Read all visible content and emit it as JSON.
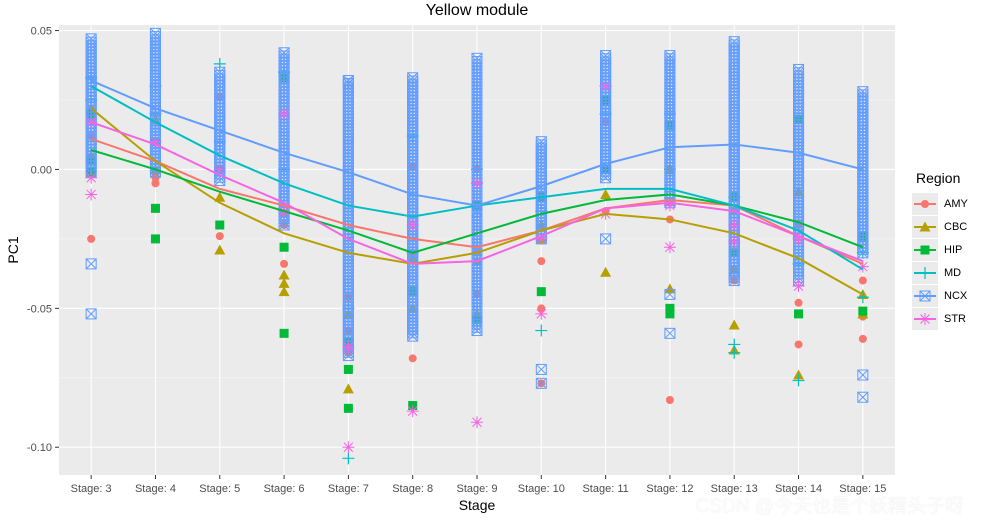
{
  "chart_data": {
    "type": "scatter",
    "title": "Yellow module",
    "xlabel": "Stage",
    "ylabel": "PC1",
    "categories": [
      "Stage: 3",
      "Stage: 4",
      "Stage: 5",
      "Stage: 6",
      "Stage: 7",
      "Stage: 8",
      "Stage: 9",
      "Stage: 10",
      "Stage: 11",
      "Stage: 12",
      "Stage: 13",
      "Stage: 14",
      "Stage: 15"
    ],
    "ylim": [
      -0.11,
      0.052
    ],
    "yticks": [
      0.05,
      0.0,
      -0.05,
      -0.1
    ],
    "ytick_labels": [
      "0.05",
      "0.00",
      "-0.05",
      "-0.10"
    ],
    "legend_title": "Region",
    "legend_position": "right",
    "grid": true,
    "series": [
      {
        "name": "AMY",
        "color": "#F8766D",
        "shape": "circle",
        "trend": [
          0.011,
          0.003,
          -0.007,
          -0.013,
          -0.02,
          -0.025,
          -0.028,
          -0.022,
          -0.014,
          -0.011,
          -0.013,
          -0.024,
          -0.034
        ],
        "points": [
          [
            0,
            0.012
          ],
          [
            0,
            0.018
          ],
          [
            0,
            -0.025
          ],
          [
            1,
            0.01
          ],
          [
            1,
            -0.003
          ],
          [
            1,
            -0.005
          ],
          [
            2,
            0.0
          ],
          [
            2,
            -0.024
          ],
          [
            2,
            0.026
          ],
          [
            3,
            -0.016
          ],
          [
            3,
            -0.034
          ],
          [
            3,
            -0.02
          ],
          [
            4,
            -0.046
          ],
          [
            4,
            -0.066
          ],
          [
            4,
            -0.058
          ],
          [
            5,
            -0.068
          ],
          [
            5,
            0.001
          ],
          [
            5,
            -0.03
          ],
          [
            6,
            0.0
          ],
          [
            6,
            -0.03
          ],
          [
            6,
            -0.045
          ],
          [
            7,
            -0.077
          ],
          [
            7,
            -0.033
          ],
          [
            7,
            -0.05
          ],
          [
            8,
            0.017
          ],
          [
            8,
            0.0
          ],
          [
            8,
            -0.015
          ],
          [
            9,
            -0.083
          ],
          [
            9,
            0.0
          ],
          [
            9,
            -0.018
          ],
          [
            10,
            -0.036
          ],
          [
            10,
            -0.04
          ],
          [
            10,
            -0.015
          ],
          [
            11,
            -0.063
          ],
          [
            11,
            -0.048
          ],
          [
            11,
            -0.02
          ],
          [
            12,
            -0.061
          ],
          [
            12,
            -0.053
          ],
          [
            12,
            -0.04
          ]
        ]
      },
      {
        "name": "CBC",
        "color": "#B79F00",
        "shape": "triangle",
        "trend": [
          0.022,
          0.003,
          -0.012,
          -0.023,
          -0.03,
          -0.034,
          -0.03,
          -0.022,
          -0.016,
          -0.018,
          -0.023,
          -0.032,
          -0.045
        ],
        "points": [
          [
            0,
            0.022
          ],
          [
            0,
            0.005
          ],
          [
            1,
            0.018
          ],
          [
            1,
            0.0
          ],
          [
            2,
            -0.029
          ],
          [
            2,
            -0.01
          ],
          [
            3,
            -0.038
          ],
          [
            3,
            -0.041
          ],
          [
            3,
            -0.044
          ],
          [
            4,
            -0.079
          ],
          [
            4,
            -0.052
          ],
          [
            4,
            -0.064
          ],
          [
            5,
            -0.032
          ],
          [
            5,
            -0.05
          ],
          [
            6,
            -0.033
          ],
          [
            6,
            -0.052
          ],
          [
            7,
            -0.025
          ],
          [
            7,
            -0.02
          ],
          [
            8,
            -0.037
          ],
          [
            8,
            -0.009
          ],
          [
            9,
            -0.043
          ],
          [
            9,
            0.0
          ],
          [
            10,
            -0.056
          ],
          [
            10,
            -0.065
          ],
          [
            10,
            -0.036
          ],
          [
            11,
            -0.074
          ],
          [
            11,
            -0.008
          ],
          [
            12,
            -0.052
          ],
          [
            12,
            -0.045
          ]
        ]
      },
      {
        "name": "HIP",
        "color": "#00BA38",
        "shape": "square",
        "trend": [
          0.007,
          0.0,
          -0.008,
          -0.015,
          -0.022,
          -0.03,
          -0.023,
          -0.016,
          -0.011,
          -0.009,
          -0.013,
          -0.019,
          -0.028
        ],
        "points": [
          [
            0,
            0.003
          ],
          [
            0,
            -0.001
          ],
          [
            0,
            0.02
          ],
          [
            1,
            -0.014
          ],
          [
            1,
            -0.025
          ],
          [
            1,
            0.01
          ],
          [
            2,
            -0.02
          ],
          [
            2,
            0.0
          ],
          [
            3,
            -0.059
          ],
          [
            3,
            -0.028
          ],
          [
            3,
            0.033
          ],
          [
            4,
            -0.086
          ],
          [
            4,
            -0.072
          ],
          [
            4,
            -0.062
          ],
          [
            5,
            -0.085
          ],
          [
            5,
            -0.044
          ],
          [
            6,
            -0.054
          ],
          [
            6,
            -0.013
          ],
          [
            7,
            -0.044
          ],
          [
            7,
            -0.01
          ],
          [
            8,
            0.025
          ],
          [
            8,
            0.0
          ],
          [
            9,
            0.016
          ],
          [
            9,
            -0.05
          ],
          [
            9,
            -0.052
          ],
          [
            10,
            -0.03
          ],
          [
            10,
            -0.01
          ],
          [
            11,
            0.018
          ],
          [
            11,
            -0.052
          ],
          [
            12,
            -0.051
          ],
          [
            12,
            -0.024
          ]
        ]
      },
      {
        "name": "MD",
        "color": "#00BFC4",
        "shape": "plus",
        "trend": [
          0.03,
          0.017,
          0.005,
          -0.005,
          -0.013,
          -0.017,
          -0.013,
          -0.01,
          -0.007,
          -0.007,
          -0.013,
          -0.022,
          -0.036
        ],
        "points": [
          [
            0,
            0.033
          ],
          [
            0,
            0.025
          ],
          [
            1,
            0.02
          ],
          [
            1,
            0.03
          ],
          [
            2,
            0.038
          ],
          [
            2,
            0.01
          ],
          [
            3,
            0.035
          ],
          [
            3,
            0.0
          ],
          [
            4,
            -0.104
          ],
          [
            4,
            -0.05
          ],
          [
            5,
            0.012
          ],
          [
            5,
            -0.03
          ],
          [
            6,
            -0.005
          ],
          [
            6,
            0.0
          ],
          [
            7,
            -0.058
          ],
          [
            7,
            -0.015
          ],
          [
            8,
            0.02
          ],
          [
            8,
            0.03
          ],
          [
            9,
            0.02
          ],
          [
            9,
            0.0
          ],
          [
            10,
            -0.066
          ],
          [
            10,
            -0.063
          ],
          [
            10,
            -0.01
          ],
          [
            11,
            -0.076
          ],
          [
            11,
            -0.034
          ],
          [
            12,
            -0.046
          ],
          [
            12,
            -0.03
          ]
        ]
      },
      {
        "name": "NCX",
        "color": "#619CFF",
        "shape": "box-x",
        "trend": [
          0.032,
          0.022,
          0.014,
          0.006,
          -0.001,
          -0.009,
          -0.013,
          -0.006,
          0.002,
          0.008,
          0.009,
          0.006,
          0.0
        ],
        "stacks": [
          [
            0.047,
            -0.001
          ],
          [
            0.049,
            -0.001
          ],
          [
            0.035,
            -0.004
          ],
          [
            0.042,
            -0.02
          ],
          [
            0.032,
            -0.067
          ],
          [
            0.033,
            -0.06
          ],
          [
            0.04,
            -0.058
          ],
          [
            0.01,
            -0.025
          ],
          [
            0.041,
            -0.003
          ],
          [
            0.041,
            -0.012
          ],
          [
            0.046,
            -0.04
          ],
          [
            0.036,
            -0.04
          ],
          [
            0.028,
            -0.03
          ]
        ],
        "points": [
          [
            0,
            -0.034
          ],
          [
            0,
            -0.052
          ],
          [
            6,
            -0.015
          ],
          [
            7,
            -0.077
          ],
          [
            7,
            -0.072
          ],
          [
            8,
            -0.025
          ],
          [
            9,
            -0.059
          ],
          [
            9,
            -0.045
          ],
          [
            12,
            -0.074
          ],
          [
            12,
            -0.082
          ],
          [
            4,
            0.031
          ],
          [
            4,
            0.032
          ]
        ]
      },
      {
        "name": "STR",
        "color": "#F564E3",
        "shape": "star",
        "trend": [
          0.017,
          0.009,
          -0.002,
          -0.012,
          -0.025,
          -0.034,
          -0.033,
          -0.024,
          -0.014,
          -0.012,
          -0.015,
          -0.024,
          -0.033
        ],
        "points": [
          [
            0,
            -0.009
          ],
          [
            0,
            -0.003
          ],
          [
            0,
            0.017
          ],
          [
            1,
            0.01
          ],
          [
            2,
            0.0
          ],
          [
            3,
            -0.015
          ],
          [
            3,
            0.02
          ],
          [
            4,
            -0.1
          ],
          [
            4,
            -0.064
          ],
          [
            5,
            -0.087
          ],
          [
            5,
            -0.02
          ],
          [
            6,
            -0.091
          ],
          [
            6,
            -0.005
          ],
          [
            7,
            -0.052
          ],
          [
            7,
            -0.025
          ],
          [
            8,
            -0.016
          ],
          [
            8,
            0.03
          ],
          [
            9,
            -0.028
          ],
          [
            9,
            -0.013
          ],
          [
            10,
            -0.02
          ],
          [
            10,
            -0.026
          ],
          [
            11,
            -0.042
          ],
          [
            11,
            -0.025
          ],
          [
            12,
            -0.035
          ]
        ]
      }
    ]
  },
  "watermark": "CSDN @今天也是个妖精头子呀"
}
